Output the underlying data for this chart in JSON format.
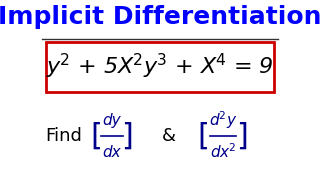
{
  "title": "Implicit Differentiation",
  "title_color": "#0000FF",
  "title_fontsize": 18,
  "bg_color": "#FFFFFF",
  "eq_color": "#000000",
  "eq_fontsize": 16,
  "box_edge_color": "#CC0000",
  "find_text": "Find",
  "find_color": "#000000",
  "find_fontsize": 13,
  "deriv_color": "#00008B",
  "ampersand": "&",
  "amp_color": "#000000",
  "line_color": "#333333"
}
